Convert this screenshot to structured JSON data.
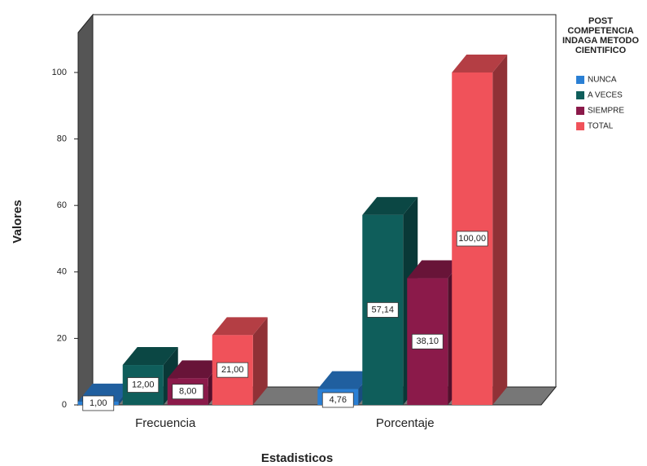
{
  "chart_data": {
    "type": "bar3d",
    "x_label": "Estadisticos",
    "y_label": "Valores",
    "legend_title": "POST COMPETENCIA INDAGA METODO CIENTIFICO",
    "categories": [
      "Frecuencia",
      "Porcentaje"
    ],
    "series": [
      {
        "name": "NUNCA",
        "color": "#2a7fd4",
        "values": [
          1,
          4.76
        ],
        "value_labels": [
          "1,00",
          "4,76"
        ]
      },
      {
        "name": "A VECES",
        "color": "#0f5e5b",
        "values": [
          12,
          57.14
        ],
        "value_labels": [
          "12,00",
          "57,14"
        ]
      },
      {
        "name": "SIEMPRE",
        "color": "#8b1a4a",
        "values": [
          8,
          38.1
        ],
        "value_labels": [
          "8,00",
          "38,10"
        ]
      },
      {
        "name": "TOTAL",
        "color": "#f0525a",
        "values": [
          21,
          100
        ],
        "value_labels": [
          "21,00",
          "100,00"
        ]
      }
    ],
    "ylim": [
      0,
      112
    ],
    "yticks": [
      0,
      20,
      40,
      60,
      80,
      100
    ],
    "legend": "right"
  }
}
